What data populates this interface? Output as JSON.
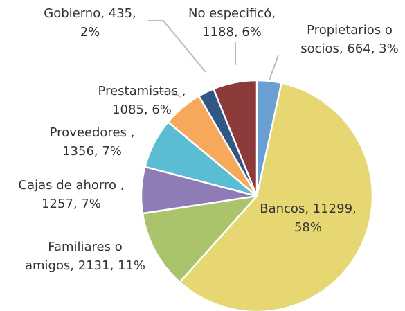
{
  "chart_data": {
    "type": "pie",
    "values": [
      664,
      11299,
      2131,
      1257,
      1356,
      1085,
      435,
      1188
    ],
    "value_labels": [
      "Propietarios o\nsocios, 664, 3%",
      "Bancos, 11299,\n58%",
      "Familiares o\namigos, 2131, 11%",
      "Cajas de ahorro ,\n1257, 7%",
      "Proveedores ,\n1356, 7%",
      "Prestamistas ,\n1085, 6%",
      "Gobierno, 435,\n2%",
      "No especificó,\n1188, 6%"
    ],
    "colors": [
      "#6a9fd4",
      "#e6d772",
      "#a9c46b",
      "#8f7bb5",
      "#5bbdd4",
      "#f6a95b",
      "#315785",
      "#8c3b3a"
    ]
  }
}
